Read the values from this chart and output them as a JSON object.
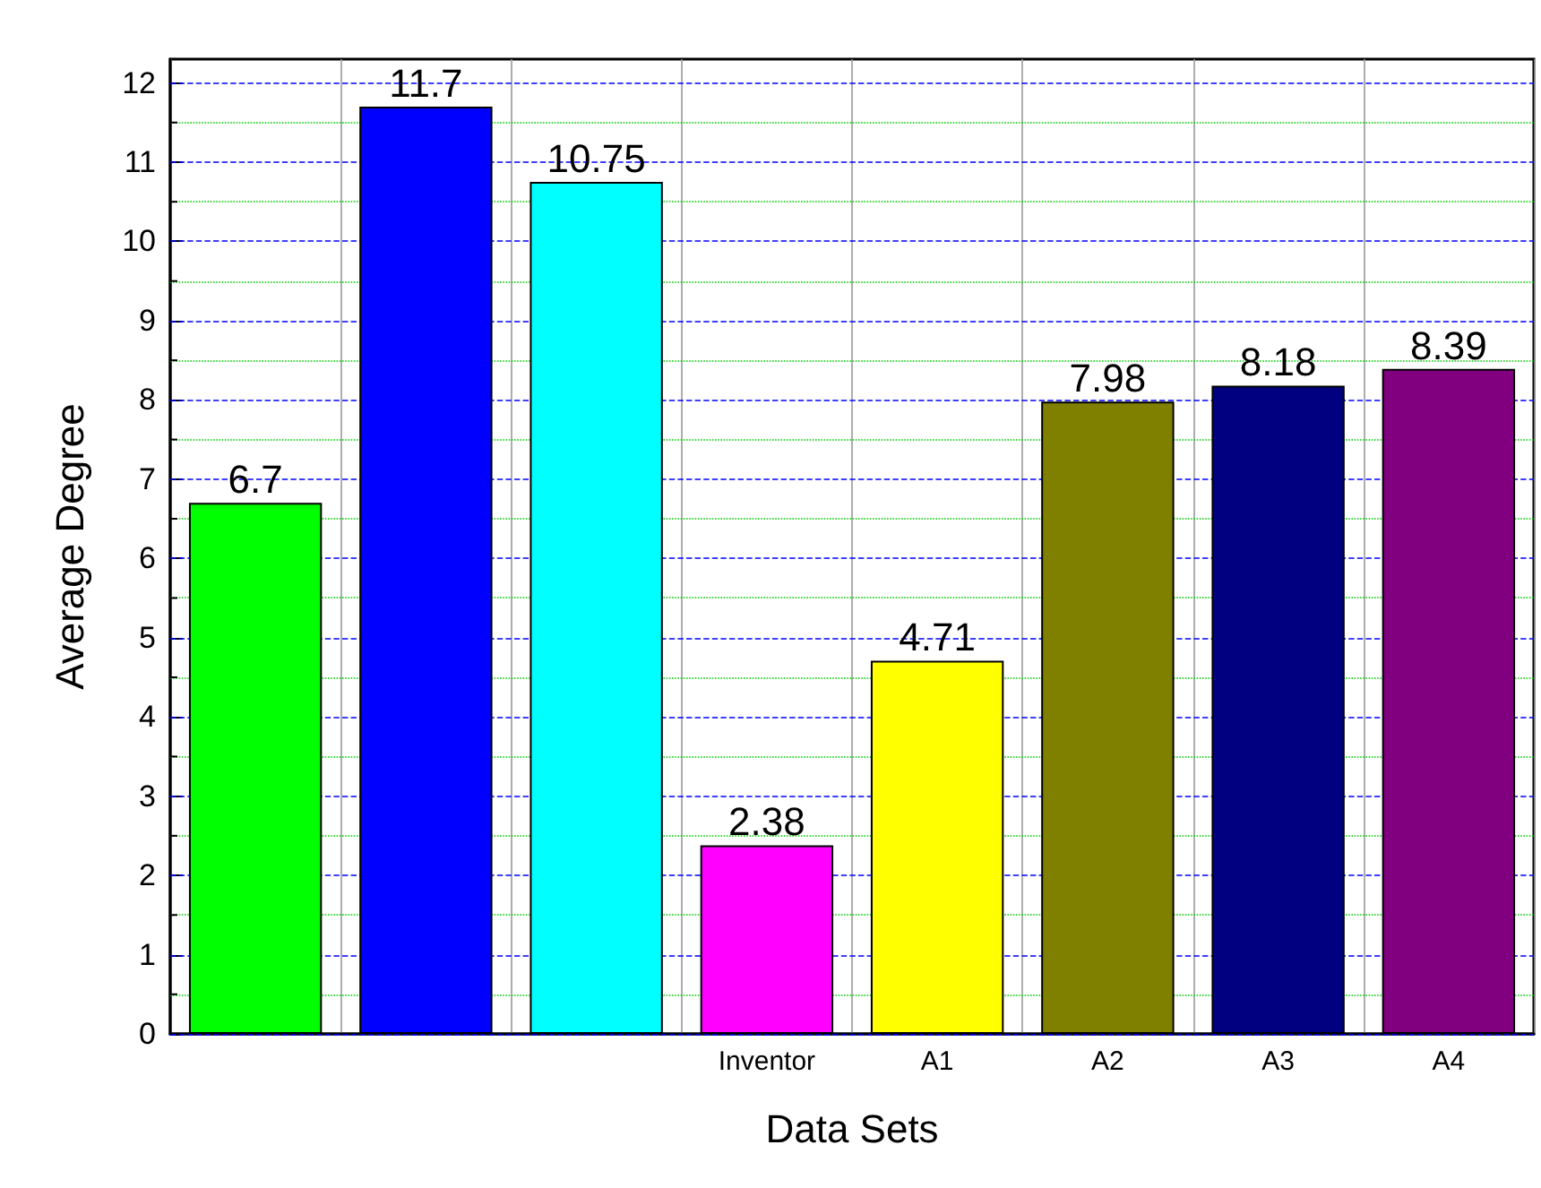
{
  "chart_data": {
    "type": "bar",
    "xlabel": "Data Sets",
    "ylabel": "Average Degree",
    "categories": [
      null,
      null,
      null,
      "Inventor",
      "A1",
      "A2",
      "A3",
      "A4"
    ],
    "values": [
      6.7,
      11.7,
      10.75,
      2.38,
      4.71,
      7.98,
      8.18,
      8.39
    ],
    "colors": [
      "#00ff00",
      "#0000ff",
      "#00ffff",
      "#ff00ff",
      "#ffff00",
      "#808000",
      "#000080",
      "#800080"
    ],
    "ylim": [
      0,
      12.3
    ],
    "yticks": [
      0,
      {
        "value": 0.5,
        "label": null
      },
      1,
      {
        "value": 1.5,
        "label": null
      },
      2,
      {
        "value": 2.5,
        "label": null
      },
      3,
      {
        "value": 3.5,
        "label": null
      },
      4,
      {
        "value": 4.5,
        "label": null
      },
      5,
      {
        "value": 5.5,
        "label": null
      },
      6,
      {
        "value": 6.5,
        "label": null
      },
      7,
      {
        "value": 7.5,
        "label": null
      },
      8,
      {
        "value": 8.5,
        "label": null
      },
      9,
      {
        "value": 9.5,
        "label": null
      },
      10,
      {
        "value": 10.5,
        "label": null
      },
      11,
      {
        "value": 11.5,
        "label": null
      },
      12
    ],
    "grid": true,
    "data_labels": true
  }
}
